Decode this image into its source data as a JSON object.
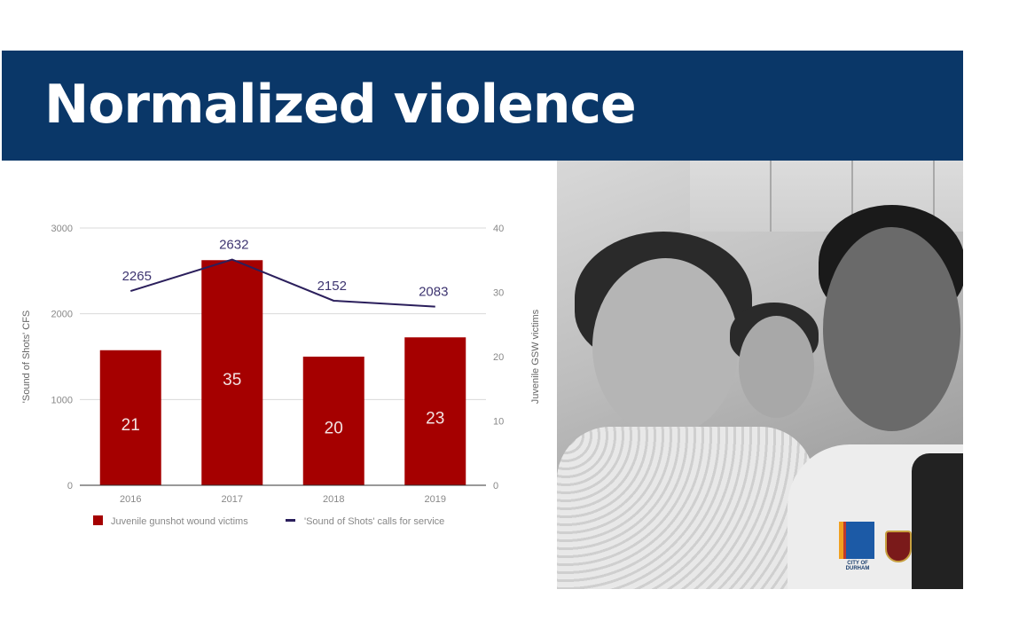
{
  "slide": {
    "title": "Normalized violence",
    "colors": {
      "title_bar": "#0a3768",
      "bar": "#a50000",
      "line": "#2b1f5c"
    }
  },
  "chart_data": {
    "type": "bar+line",
    "title": "",
    "categories": [
      "2016",
      "2017",
      "2018",
      "2019"
    ],
    "series": [
      {
        "name": "Juvenile gunshot wound victims",
        "type": "bar",
        "axis": "right",
        "values": [
          21,
          35,
          20,
          23
        ],
        "color": "#a50000"
      },
      {
        "name": "'Sound of Shots' calls for service",
        "type": "line",
        "axis": "left",
        "values": [
          2265,
          2632,
          2152,
          2083
        ],
        "color": "#2b1f5c"
      }
    ],
    "ylabel_left": "'Sound of Shots' CFS",
    "ylabel_right": "Juvenile GSW victims",
    "ylim_left": [
      0,
      3000
    ],
    "ylim_right": [
      0,
      40
    ],
    "yticks_left": [
      "0",
      "1000",
      "2000",
      "3000"
    ],
    "yticks_right": [
      "0",
      "10",
      "20",
      "30",
      "40"
    ],
    "grid": true,
    "legend_position": "bottom"
  },
  "photo": {
    "description": "Black and white selfie of a girl in a hospital gown with two police officers",
    "logos": [
      "City of Durham",
      "Durham Police"
    ]
  },
  "logos": {
    "durham_label": "CITY OF DURHAM"
  }
}
